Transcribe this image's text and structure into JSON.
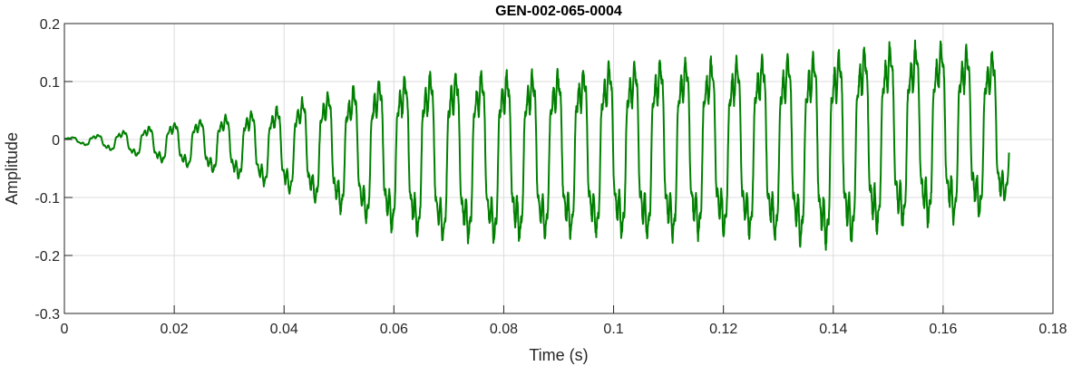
{
  "chart_data": {
    "type": "line",
    "title": "GEN-002-065-0004",
    "xlabel": "Time (s)",
    "ylabel": "Amplitude",
    "xlim": [
      0,
      0.18
    ],
    "ylim": [
      -0.3,
      0.2
    ],
    "xticks": [
      0,
      0.02,
      0.04,
      0.06,
      0.08,
      0.1,
      0.12,
      0.14,
      0.16,
      0.18
    ],
    "xtick_labels": [
      "0",
      "0.02",
      "0.04",
      "0.06",
      "0.08",
      "0.1",
      "0.12",
      "0.14",
      "0.16",
      "0.18"
    ],
    "yticks": [
      -0.3,
      -0.2,
      -0.1,
      0,
      0.1,
      0.2
    ],
    "ytick_labels": [
      "-0.3",
      "-0.2",
      "-0.1",
      "0",
      "0.1",
      "0.2"
    ],
    "grid": true,
    "series_color": "#008000",
    "signal": {
      "x_start": 0,
      "x_end": 0.172,
      "fundamental_hz": 215,
      "envelope_max": [
        [
          0,
          0.003
        ],
        [
          0.008,
          0.012
        ],
        [
          0.012,
          0.02
        ],
        [
          0.02,
          0.035
        ],
        [
          0.03,
          0.05
        ],
        [
          0.04,
          0.07
        ],
        [
          0.045,
          0.09
        ],
        [
          0.05,
          0.1
        ],
        [
          0.06,
          0.13
        ],
        [
          0.07,
          0.14
        ],
        [
          0.08,
          0.14
        ],
        [
          0.09,
          0.14
        ],
        [
          0.1,
          0.155
        ],
        [
          0.11,
          0.165
        ],
        [
          0.12,
          0.165
        ],
        [
          0.13,
          0.17
        ],
        [
          0.14,
          0.18
        ],
        [
          0.15,
          0.19
        ],
        [
          0.16,
          0.19
        ],
        [
          0.17,
          0.17
        ],
        [
          0.172,
          0.06
        ]
      ],
      "envelope_min": [
        [
          0,
          -0.003
        ],
        [
          0.008,
          -0.02
        ],
        [
          0.012,
          -0.03
        ],
        [
          0.02,
          -0.05
        ],
        [
          0.03,
          -0.07
        ],
        [
          0.04,
          -0.1
        ],
        [
          0.045,
          -0.12
        ],
        [
          0.05,
          -0.14
        ],
        [
          0.06,
          -0.18
        ],
        [
          0.07,
          -0.2
        ],
        [
          0.08,
          -0.2
        ],
        [
          0.09,
          -0.19
        ],
        [
          0.1,
          -0.19
        ],
        [
          0.11,
          -0.2
        ],
        [
          0.12,
          -0.19
        ],
        [
          0.13,
          -0.2
        ],
        [
          0.14,
          -0.215
        ],
        [
          0.15,
          -0.18
        ],
        [
          0.16,
          -0.17
        ],
        [
          0.17,
          -0.15
        ],
        [
          0.172,
          -0.1
        ]
      ]
    }
  }
}
